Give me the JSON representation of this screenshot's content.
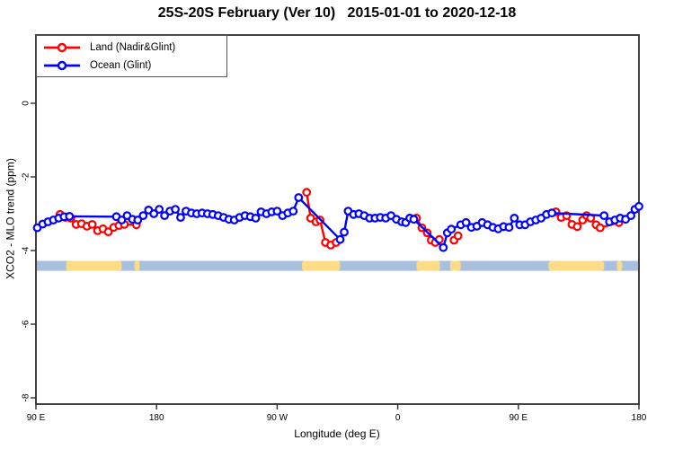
{
  "chart_data": {
    "type": "line",
    "title": "25S-20S February (Ver 10)   2015-01-01 to 2020-12-18",
    "xlabel": "Longitude (deg E)",
    "ylabel": "XCO2 - MLO trend (ppm)",
    "xlim": [
      90,
      540
    ],
    "ylim": [
      -8.2,
      1.9
    ],
    "grid": false,
    "legend_position": "top-left",
    "x_axis_note": "longitude plotted eastward from 90E, wrapping through 180, 90W, 0, 90E to 180",
    "axes": {
      "x_ticks": [
        {
          "lon": 90,
          "label": "90 E"
        },
        {
          "lon": 180,
          "label": "180"
        },
        {
          "lon": 270,
          "label": "90 W"
        },
        {
          "lon": 360,
          "label": "0"
        },
        {
          "lon": 450,
          "label": "90 E"
        },
        {
          "lon": 540,
          "label": "180"
        }
      ],
      "y_ticks": [
        {
          "value": 0,
          "label": "0"
        },
        {
          "value": -2,
          "label": "-2"
        },
        {
          "value": -4,
          "label": "-4"
        },
        {
          "value": -6,
          "label": "-6"
        },
        {
          "value": -8,
          "label": "-8"
        }
      ]
    },
    "series": [
      {
        "name": "Land (Nadir&Glint)",
        "color": "#ff0000",
        "marker": "open-circle",
        "segments": [
          [
            [
              108,
              -3.02
            ],
            [
              112,
              -3.1
            ],
            [
              116,
              -3.12
            ],
            [
              120,
              -3.29
            ],
            [
              124,
              -3.27
            ],
            [
              128,
              -3.34
            ],
            [
              132,
              -3.29
            ],
            [
              136,
              -3.46
            ],
            [
              140,
              -3.41
            ],
            [
              144,
              -3.49
            ],
            [
              148,
              -3.37
            ],
            [
              152,
              -3.32
            ],
            [
              156,
              -3.29
            ],
            [
              165,
              -3.3
            ]
          ],
          [
            [
              292,
              -2.42
            ],
            [
              295,
              -3.12
            ],
            [
              299,
              -3.22
            ],
            [
              302,
              -3.17
            ],
            [
              306,
              -3.78
            ],
            [
              310,
              -3.85
            ],
            [
              314,
              -3.78
            ]
          ],
          [
            [
              374,
              -3.12
            ],
            [
              378,
              -3.38
            ],
            [
              382,
              -3.52
            ],
            [
              385,
              -3.72
            ],
            [
              388,
              -3.78
            ],
            [
              391,
              -3.7
            ]
          ],
          [
            [
              402,
              -3.72
            ],
            [
              405,
              -3.6
            ]
          ],
          [
            [
              478,
              -2.95
            ],
            [
              482,
              -3.1
            ],
            [
              486,
              -3.05
            ],
            [
              490,
              -3.29
            ],
            [
              494,
              -3.35
            ],
            [
              498,
              -3.17
            ],
            [
              501,
              -3.05
            ],
            [
              504,
              -3.12
            ],
            [
              508,
              -3.3
            ],
            [
              511,
              -3.38
            ],
            [
              525,
              -3.24
            ]
          ]
        ]
      },
      {
        "name": "Ocean (Glint)",
        "color": "#0000ff",
        "marker": "open-circle",
        "segments": [
          [
            [
              91,
              -3.38
            ],
            [
              95,
              -3.28
            ],
            [
              99,
              -3.22
            ],
            [
              103,
              -3.17
            ],
            [
              107,
              -3.12
            ],
            [
              111,
              -3.08
            ],
            [
              115,
              -3.07
            ],
            [
              150,
              -3.08
            ],
            [
              154,
              -3.17
            ],
            [
              158,
              -3.05
            ],
            [
              162,
              -3.15
            ],
            [
              166,
              -3.17
            ],
            [
              170,
              -3.05
            ],
            [
              174,
              -2.9
            ],
            [
              178,
              -3.0
            ],
            [
              182,
              -2.88
            ],
            [
              186,
              -3.05
            ],
            [
              190,
              -2.93
            ],
            [
              194,
              -2.88
            ],
            [
              198,
              -3.1
            ],
            [
              202,
              -2.93
            ],
            [
              206,
              -2.98
            ],
            [
              210,
              -3.0
            ],
            [
              214,
              -2.98
            ],
            [
              218,
              -3.0
            ],
            [
              222,
              -3.02
            ],
            [
              226,
              -3.05
            ],
            [
              230,
              -3.1
            ],
            [
              234,
              -3.15
            ],
            [
              238,
              -3.17
            ],
            [
              242,
              -3.1
            ],
            [
              246,
              -3.05
            ],
            [
              250,
              -3.08
            ],
            [
              254,
              -3.12
            ],
            [
              258,
              -2.95
            ],
            [
              262,
              -3.0
            ],
            [
              266,
              -2.95
            ],
            [
              270,
              -2.93
            ],
            [
              274,
              -3.05
            ],
            [
              278,
              -2.98
            ],
            [
              282,
              -2.93
            ],
            [
              286,
              -2.56
            ],
            [
              317,
              -3.7
            ],
            [
              320,
              -3.5
            ],
            [
              323,
              -2.93
            ],
            [
              327,
              -3.02
            ],
            [
              331,
              -3.0
            ],
            [
              335,
              -3.05
            ],
            [
              339,
              -3.12
            ],
            [
              343,
              -3.12
            ],
            [
              347,
              -3.1
            ],
            [
              351,
              -3.12
            ],
            [
              355,
              -3.05
            ],
            [
              359,
              -3.15
            ],
            [
              363,
              -3.22
            ],
            [
              366,
              -3.24
            ],
            [
              369,
              -3.12
            ],
            [
              372,
              -3.15
            ],
            [
              394,
              -3.92
            ],
            [
              397,
              -3.52
            ],
            [
              400,
              -3.42
            ],
            [
              407,
              -3.3
            ],
            [
              411,
              -3.24
            ],
            [
              415,
              -3.37
            ],
            [
              419,
              -3.34
            ],
            [
              423,
              -3.24
            ],
            [
              427,
              -3.3
            ],
            [
              431,
              -3.37
            ],
            [
              435,
              -3.41
            ],
            [
              439,
              -3.35
            ],
            [
              443,
              -3.37
            ],
            [
              447,
              -3.12
            ],
            [
              451,
              -3.3
            ],
            [
              455,
              -3.3
            ],
            [
              459,
              -3.22
            ],
            [
              463,
              -3.17
            ],
            [
              467,
              -3.12
            ],
            [
              471,
              -3.02
            ],
            [
              475,
              -2.98
            ],
            [
              514,
              -3.05
            ],
            [
              518,
              -3.22
            ],
            [
              522,
              -3.17
            ],
            [
              526,
              -3.12
            ],
            [
              530,
              -3.15
            ],
            [
              534,
              -3.05
            ],
            [
              537,
              -2.88
            ],
            [
              540,
              -2.8
            ]
          ]
        ]
      }
    ],
    "land_ocean_strip": {
      "description": "map strip showing land (yellow) vs ocean (blue) along the 25S-20S latitude band",
      "value_range": [
        -4.28,
        -4.55
      ],
      "ocean_color": "#a9bfde",
      "land_color": "#fcdc85",
      "land_segments_lon": [
        [
          112.5,
          154
        ],
        [
          163.5,
          167.5
        ],
        [
          288.5,
          317
        ],
        [
          374,
          391.5
        ],
        [
          399,
          407
        ],
        [
          472.5,
          514
        ],
        [
          523.5,
          527.5
        ]
      ]
    },
    "colors": {
      "axis": "#2e2e2e",
      "text": "#000000",
      "background": "#ffffff",
      "land_series": "#ff0000",
      "ocean_series": "#0000ff"
    }
  }
}
